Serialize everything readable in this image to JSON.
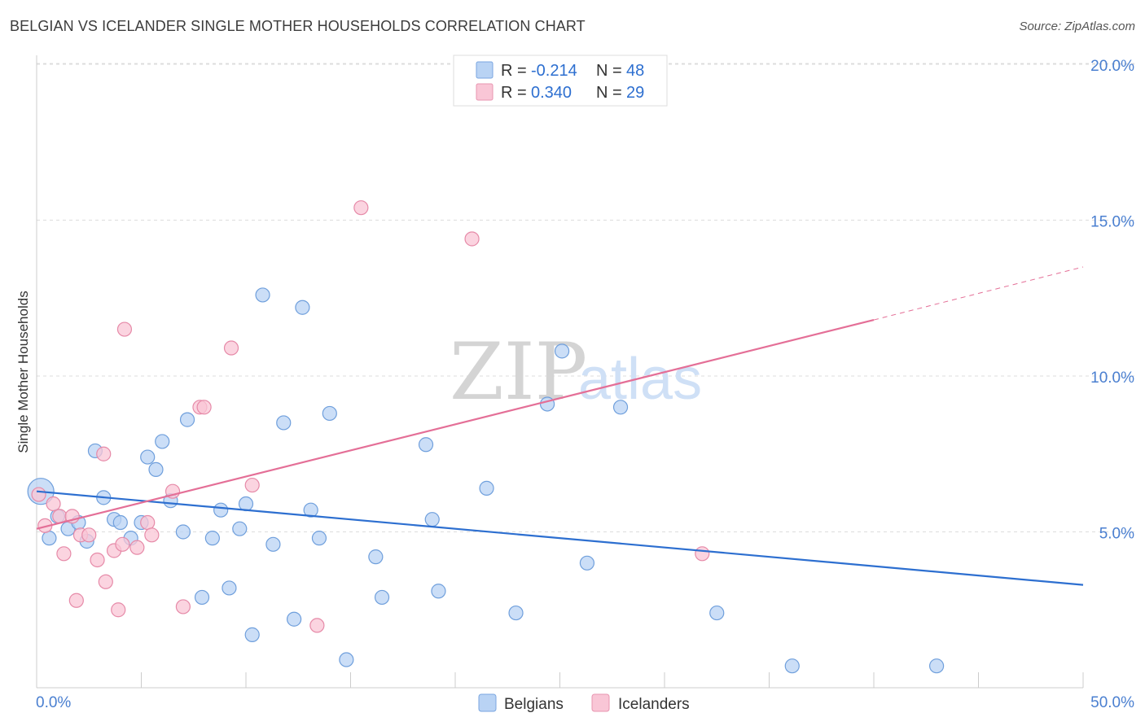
{
  "title": "BELGIAN VS ICELANDER SINGLE MOTHER HOUSEHOLDS CORRELATION CHART",
  "source": "Source: ZipAtlas.com",
  "watermark": {
    "part1": "ZIP",
    "part2": "atlas"
  },
  "legend": {
    "r_label": "R =",
    "n_label": "N =",
    "rows": [
      {
        "r": "-0.214",
        "n": "48",
        "fill": "#b9d3f4",
        "stroke": "#7aa6e0"
      },
      {
        "r": "0.340",
        "n": "29",
        "fill": "#f9c6d6",
        "stroke": "#e895b0"
      }
    ]
  },
  "colors": {
    "blue_point_fill": "#b9d3f4",
    "blue_point_stroke": "#6f9fdc",
    "pink_point_fill": "#f9c6d6",
    "pink_point_stroke": "#e68aa8",
    "blue_line": "#2d6fd0",
    "pink_line": "#e46f97",
    "grid": "#dddddd",
    "tick_text": "#4a7fd0"
  },
  "chart_data": {
    "type": "scatter",
    "title": "BELGIAN VS ICELANDER SINGLE MOTHER HOUSEHOLDS CORRELATION CHART",
    "xlabel": "",
    "ylabel": "Single Mother Households",
    "xlim": [
      0,
      50
    ],
    "ylim": [
      0,
      20
    ],
    "x_tick_labels": [
      "0.0%",
      "50.0%"
    ],
    "y_ticks": [
      5,
      10,
      15,
      20
    ],
    "y_tick_labels": [
      "5.0%",
      "10.0%",
      "15.0%",
      "20.0%"
    ],
    "grid": true,
    "legend_position": "top-center",
    "series": [
      {
        "name": "Belgians",
        "points": [
          [
            0.2,
            6.3
          ],
          [
            0.6,
            4.8
          ],
          [
            1.0,
            5.5
          ],
          [
            1.5,
            5.1
          ],
          [
            2.0,
            5.3
          ],
          [
            2.4,
            4.7
          ],
          [
            2.8,
            7.6
          ],
          [
            3.2,
            6.1
          ],
          [
            3.7,
            5.4
          ],
          [
            4.0,
            5.3
          ],
          [
            4.5,
            4.8
          ],
          [
            5.0,
            5.3
          ],
          [
            5.3,
            7.4
          ],
          [
            5.7,
            7.0
          ],
          [
            6.0,
            7.9
          ],
          [
            6.4,
            6.0
          ],
          [
            7.0,
            5.0
          ],
          [
            7.2,
            8.6
          ],
          [
            7.9,
            2.9
          ],
          [
            8.4,
            4.8
          ],
          [
            8.8,
            5.7
          ],
          [
            9.2,
            3.2
          ],
          [
            9.7,
            5.1
          ],
          [
            10.0,
            5.9
          ],
          [
            10.3,
            1.7
          ],
          [
            10.8,
            12.6
          ],
          [
            11.3,
            4.6
          ],
          [
            11.8,
            8.5
          ],
          [
            12.3,
            2.2
          ],
          [
            12.7,
            12.2
          ],
          [
            13.1,
            5.7
          ],
          [
            13.5,
            4.8
          ],
          [
            14.0,
            8.8
          ],
          [
            14.8,
            0.9
          ],
          [
            16.2,
            4.2
          ],
          [
            16.5,
            2.9
          ],
          [
            18.6,
            7.8
          ],
          [
            18.9,
            5.4
          ],
          [
            19.2,
            3.1
          ],
          [
            21.5,
            6.4
          ],
          [
            22.9,
            2.4
          ],
          [
            24.4,
            9.1
          ],
          [
            25.1,
            10.8
          ],
          [
            26.3,
            4.0
          ],
          [
            27.9,
            9.0
          ],
          [
            32.5,
            2.4
          ],
          [
            36.1,
            0.7
          ],
          [
            43.0,
            0.7
          ]
        ]
      },
      {
        "name": "Icelanders",
        "points": [
          [
            0.1,
            6.2
          ],
          [
            0.4,
            5.2
          ],
          [
            0.8,
            5.9
          ],
          [
            1.1,
            5.5
          ],
          [
            1.3,
            4.3
          ],
          [
            1.7,
            5.5
          ],
          [
            1.9,
            2.8
          ],
          [
            2.1,
            4.9
          ],
          [
            2.5,
            4.9
          ],
          [
            2.9,
            4.1
          ],
          [
            3.2,
            7.5
          ],
          [
            3.3,
            3.4
          ],
          [
            3.7,
            4.4
          ],
          [
            3.9,
            2.5
          ],
          [
            4.1,
            4.6
          ],
          [
            4.2,
            11.5
          ],
          [
            4.8,
            4.5
          ],
          [
            5.3,
            5.3
          ],
          [
            5.5,
            4.9
          ],
          [
            7.0,
            2.6
          ],
          [
            6.5,
            6.3
          ],
          [
            7.8,
            9.0
          ],
          [
            8.0,
            9.0
          ],
          [
            9.3,
            10.9
          ],
          [
            10.3,
            6.5
          ],
          [
            13.4,
            2.0
          ],
          [
            15.5,
            15.4
          ],
          [
            20.8,
            14.4
          ],
          [
            31.8,
            4.3
          ]
        ]
      }
    ],
    "trend_lines": [
      {
        "name": "Belgians",
        "x": [
          0,
          50
        ],
        "y": [
          6.3,
          3.3
        ],
        "dash_from": null
      },
      {
        "name": "Icelanders",
        "x": [
          0,
          40,
          50
        ],
        "y": [
          5.1,
          11.8,
          13.5
        ],
        "dashed_segment": [
          40,
          50
        ]
      }
    ]
  }
}
